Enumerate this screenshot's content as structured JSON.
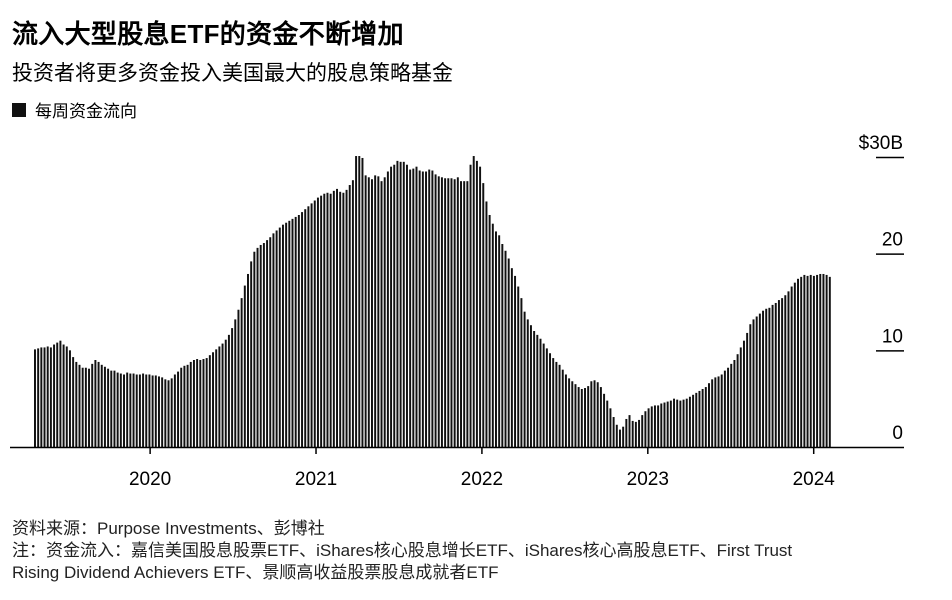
{
  "header": {
    "title": "流入大型股息ETF的资金不断增加",
    "subtitle": "投资者将更多资金投入美国最大的股息策略基金"
  },
  "legend": {
    "label": "每周资金流向",
    "color": "#111111"
  },
  "footer": {
    "source": "资料来源：Purpose Investments、彭博社",
    "note_line1": "注：资金流入：嘉信美国股息股票ETF、iShares核心股息增长ETF、iShares核心高股息ETF、First Trust",
    "note_line2": "Rising Dividend Achievers ETF、景顺高收益股票股息成就者ETF"
  },
  "chart_data": {
    "type": "bar",
    "title": "流入大型股息ETF的资金不断增加",
    "ylabel": "$ (billions)",
    "ylim": [
      0,
      30
    ],
    "yticks": [
      {
        "value": 0,
        "label": "0"
      },
      {
        "value": 10,
        "label": "10"
      },
      {
        "value": 20,
        "label": "20"
      },
      {
        "value": 30,
        "label": "$30B"
      }
    ],
    "xticks": [
      {
        "year": 2020,
        "label": "2020"
      },
      {
        "year": 2021,
        "label": "2021"
      },
      {
        "year": 2022,
        "label": "2022"
      },
      {
        "year": 2023,
        "label": "2023"
      },
      {
        "year": 2024,
        "label": "2024"
      }
    ],
    "x_start": 2019.3,
    "x_step_weeks": 1,
    "bar_color": "#111111",
    "grid": false,
    "series": [
      {
        "name": "每周资金流向",
        "values": [
          10.1,
          10.2,
          10.3,
          10.3,
          10.4,
          10.3,
          10.6,
          10.8,
          11.0,
          10.6,
          10.4,
          10.0,
          9.3,
          8.8,
          8.5,
          8.2,
          8.2,
          8.1,
          8.6,
          9.0,
          8.8,
          8.5,
          8.3,
          8.1,
          7.9,
          7.9,
          7.7,
          7.6,
          7.5,
          7.7,
          7.6,
          7.6,
          7.5,
          7.5,
          7.6,
          7.5,
          7.5,
          7.4,
          7.4,
          7.3,
          7.2,
          7.0,
          6.9,
          7.1,
          7.5,
          7.8,
          8.2,
          8.4,
          8.5,
          8.8,
          9.0,
          9.1,
          9.0,
          9.1,
          9.2,
          9.5,
          9.8,
          10.1,
          10.4,
          10.7,
          11.1,
          11.6,
          12.3,
          13.2,
          14.2,
          15.4,
          16.7,
          17.9,
          19.2,
          20.2,
          20.6,
          20.9,
          21.1,
          21.4,
          21.7,
          22.1,
          22.4,
          22.7,
          23.0,
          23.2,
          23.4,
          23.6,
          23.8,
          24.0,
          24.3,
          24.6,
          24.9,
          25.2,
          25.5,
          25.8,
          26.0,
          26.2,
          26.3,
          26.2,
          26.5,
          26.7,
          26.4,
          26.3,
          26.6,
          27.1,
          27.6,
          30.1,
          30.1,
          29.9,
          28.1,
          27.9,
          27.7,
          28.1,
          28.0,
          27.5,
          27.9,
          28.5,
          29.0,
          29.2,
          29.6,
          29.5,
          29.5,
          29.2,
          28.7,
          28.8,
          29.0,
          28.6,
          28.5,
          28.5,
          28.7,
          28.6,
          28.2,
          28.0,
          27.9,
          27.8,
          27.8,
          27.8,
          27.7,
          27.9,
          27.5,
          27.5,
          27.5,
          29.2,
          30.1,
          29.6,
          29.0,
          27.3,
          25.4,
          24.0,
          23.1,
          22.3,
          21.9,
          21.0,
          20.3,
          19.5,
          18.5,
          17.7,
          16.6,
          15.4,
          14.0,
          13.2,
          12.6,
          12.0,
          11.6,
          11.2,
          10.7,
          10.2,
          9.7,
          9.2,
          8.8,
          8.5,
          8.0,
          7.5,
          7.1,
          6.8,
          6.5,
          6.2,
          6.0,
          6.1,
          6.3,
          6.8,
          6.9,
          6.7,
          6.2,
          5.5,
          4.8,
          4.0,
          3.1,
          2.3,
          1.8,
          2.1,
          2.9,
          3.3,
          2.7,
          2.6,
          2.8,
          3.3,
          3.7,
          4.0,
          4.2,
          4.3,
          4.3,
          4.5,
          4.6,
          4.7,
          4.8,
          5.0,
          4.9,
          4.8,
          4.9,
          5.0,
          5.2,
          5.4,
          5.6,
          5.8,
          6.0,
          6.2,
          6.6,
          7.0,
          7.2,
          7.3,
          7.5,
          7.9,
          8.2,
          8.6,
          9.0,
          9.6,
          10.3,
          11.0,
          11.8,
          12.7,
          13.2,
          13.5,
          13.8,
          14.1,
          14.3,
          14.4,
          14.7,
          14.9,
          15.2,
          15.4,
          15.7,
          16.1,
          16.6,
          17.0,
          17.4,
          17.6,
          17.8,
          17.7,
          17.8,
          17.7,
          17.8,
          17.9,
          17.9,
          17.8,
          17.6
        ]
      }
    ]
  }
}
